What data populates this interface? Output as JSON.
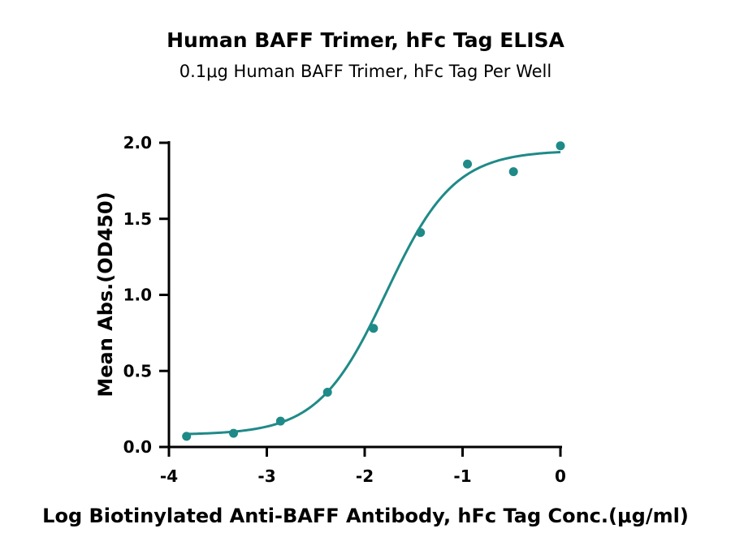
{
  "chart_data": {
    "type": "scatter",
    "title": "Human BAFF Trimer, hFc Tag ELISA",
    "subtitle": "0.1μg Human BAFF Trimer, hFc Tag Per Well",
    "xlabel": "Log Biotinylated Anti-BAFF Antibody, hFc Tag Conc.(μg/ml)",
    "ylabel": "Mean Abs.(OD450)",
    "xlim": [
      -4,
      0
    ],
    "ylim": [
      0,
      2.0
    ],
    "x_ticks": [
      "-4",
      "-3",
      "-2",
      "-1",
      "0"
    ],
    "y_ticks": [
      "0.0",
      "0.5",
      "1.0",
      "1.5",
      "2.0"
    ],
    "grid": false,
    "color": "#1f8a88",
    "points": [
      {
        "x": -3.82,
        "y": 0.07
      },
      {
        "x": -3.34,
        "y": 0.09
      },
      {
        "x": -2.86,
        "y": 0.17
      },
      {
        "x": -2.38,
        "y": 0.36
      },
      {
        "x": -1.91,
        "y": 0.78
      },
      {
        "x": -1.43,
        "y": 1.41
      },
      {
        "x": -0.95,
        "y": 1.86
      },
      {
        "x": -0.48,
        "y": 1.81
      },
      {
        "x": 0.0,
        "y": 1.98
      }
    ],
    "fit": {
      "model": "4PL",
      "bottom": 0.08,
      "top": 1.95,
      "log_ec50": -1.78,
      "hill_slope": 1.25
    }
  }
}
